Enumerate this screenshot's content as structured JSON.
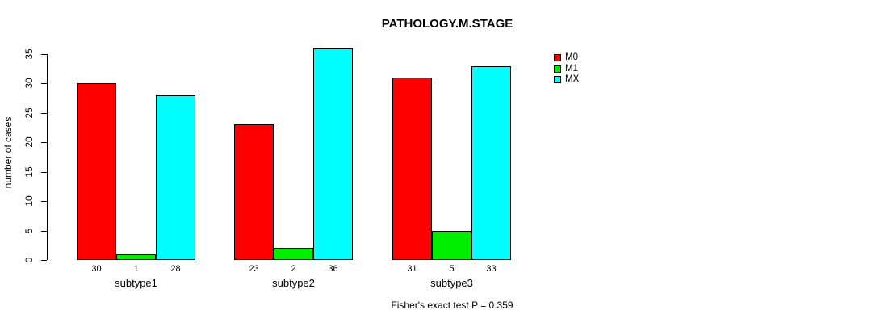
{
  "chart_data": {
    "type": "bar",
    "title": "PATHOLOGY.M.STAGE",
    "xlabel": "",
    "ylabel": "number of cases",
    "categories": [
      "subtype1",
      "subtype2",
      "subtype3"
    ],
    "series": [
      {
        "name": "M0",
        "color": "#FF0000",
        "values": [
          30,
          23,
          31
        ]
      },
      {
        "name": "M1",
        "color": "#00EE00",
        "values": [
          1,
          2,
          5
        ]
      },
      {
        "name": "MX",
        "color": "#00FFFF",
        "values": [
          28,
          36,
          33
        ]
      }
    ],
    "ylim": [
      0,
      35
    ],
    "yticks": [
      0,
      5,
      10,
      15,
      20,
      25,
      30,
      35
    ],
    "grid": false,
    "bar_value_labels_shown": true,
    "legend_position": "top-right",
    "legend_entries": [
      "M0",
      "M1",
      "MX"
    ],
    "annotation": "Fisher's exact test P = 0.359"
  }
}
